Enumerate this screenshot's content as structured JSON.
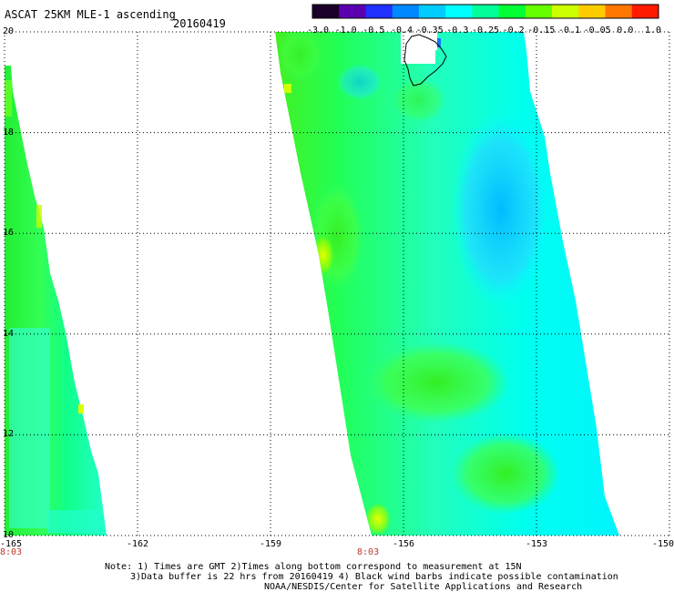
{
  "title": "ASCAT 25KM MLE-1 ascending",
  "date": "20160419",
  "colorbar": {
    "tick_labels": [
      "-3.0",
      "-1.0",
      "-0.5",
      "-0.4",
      "-0.35",
      "-0.3",
      "-0.25",
      "-0.2",
      "-0.15",
      "-0.1",
      "-0.05",
      "0.0",
      "1.0"
    ],
    "colors": [
      "#1a0028",
      "#5a00b0",
      "#2030ff",
      "#0088ff",
      "#00ccff",
      "#00ffff",
      "#00ff99",
      "#00ff33",
      "#66ff00",
      "#ccff00",
      "#ffcc00",
      "#ff7700",
      "#ff1a00"
    ]
  },
  "axes": {
    "lat_labels": [
      "20",
      "18",
      "16",
      "14",
      "12",
      "10"
    ],
    "lon_labels": [
      "-165",
      "-162",
      "-159",
      "-156",
      "-153",
      "-150"
    ],
    "lat_range": [
      10,
      20
    ],
    "lon_range": [
      -165,
      -150
    ],
    "grid": true
  },
  "swaths": [
    {
      "time": "8:03",
      "lon": -165
    },
    {
      "time": "8:03",
      "lon": -156.8
    }
  ],
  "notes": [
    "Note: 1) Times are GMT 2)Times along bottom correspond to measurement at 15N",
    "3)Data buffer is 22 hrs from 20160419 4) Black wind barbs indicate possible contamination",
    "NOAA/NESDIS/Center for Satellite Applications and Research"
  ]
}
